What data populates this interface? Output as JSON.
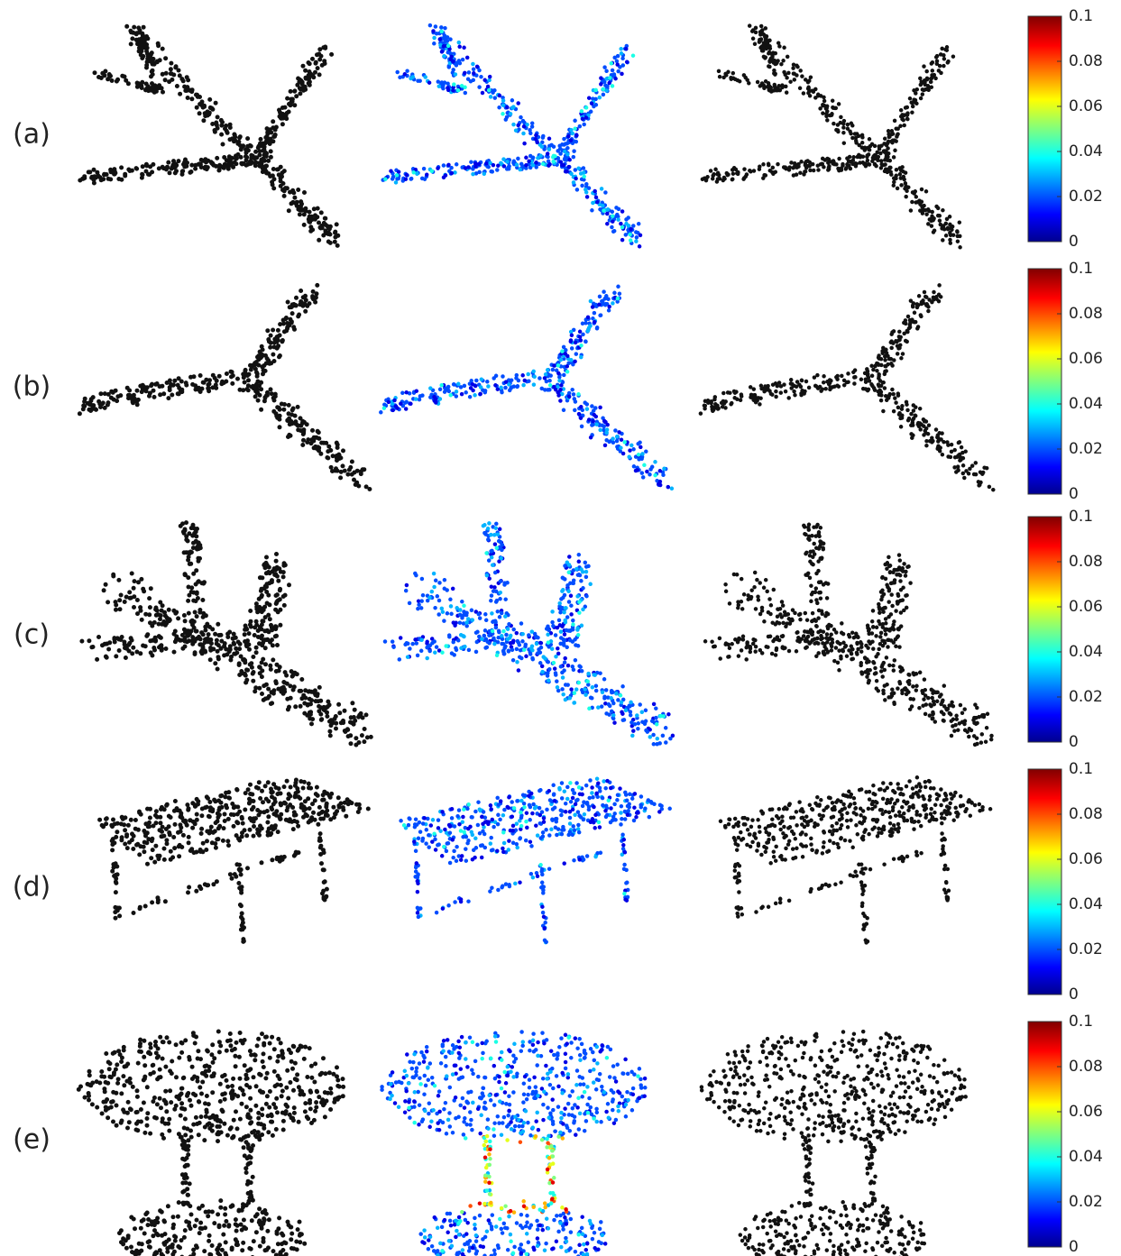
{
  "rows": [
    {
      "label": "(a)",
      "colorbar_ticks": [
        0,
        0.02,
        0.04,
        0.06,
        0.08,
        0.1
      ]
    },
    {
      "label": "(b)",
      "colorbar_ticks": [
        0,
        0.02,
        0.04,
        0.06,
        0.08,
        0.1
      ]
    },
    {
      "label": "(c)",
      "colorbar_ticks": [
        0,
        0.02,
        0.04,
        0.06,
        0.08,
        0.1
      ]
    },
    {
      "label": "(d)",
      "colorbar_ticks": [
        0,
        0.02,
        0.04,
        0.06,
        0.08,
        0.1
      ]
    },
    {
      "label": "(e)",
      "colorbar_ticks": [
        0,
        0.02,
        0.04,
        0.06,
        0.08,
        0.1
      ]
    }
  ]
}
